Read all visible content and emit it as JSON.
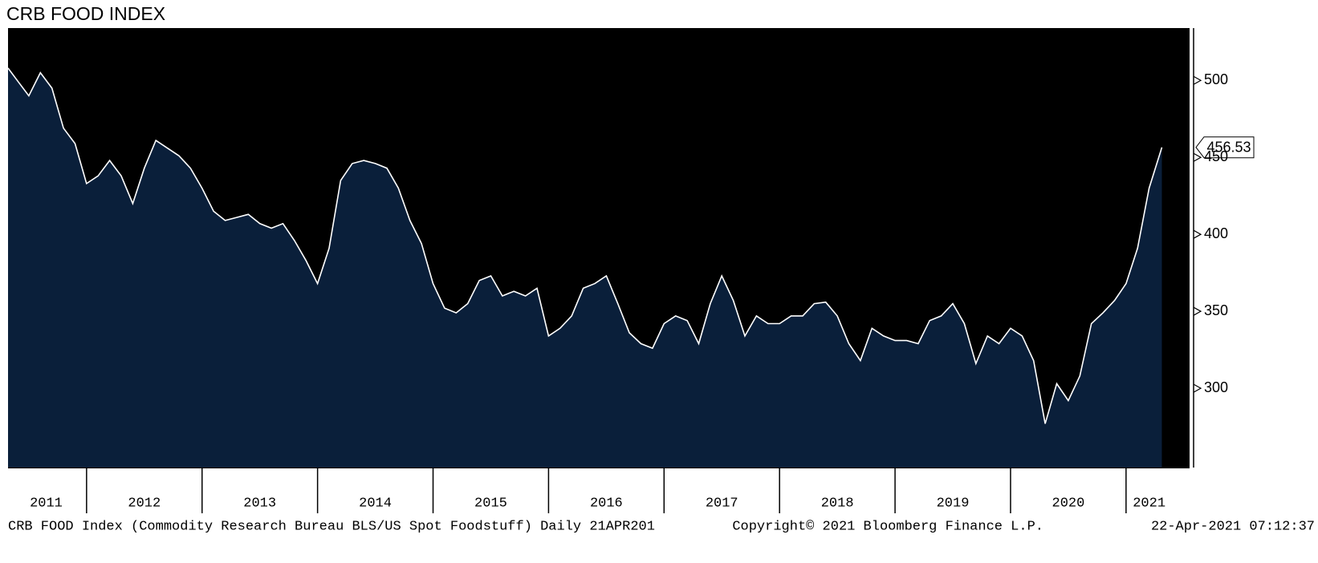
{
  "chart_data": {
    "type": "area",
    "title": "CRB FOOD INDEX",
    "x": [
      2011.32,
      2011.4,
      2011.5,
      2011.6,
      2011.7,
      2011.8,
      2011.9,
      2012.0,
      2012.1,
      2012.2,
      2012.3,
      2012.4,
      2012.5,
      2012.6,
      2012.7,
      2012.8,
      2012.9,
      2013.0,
      2013.1,
      2013.2,
      2013.3,
      2013.4,
      2013.5,
      2013.6,
      2013.7,
      2013.8,
      2013.9,
      2014.0,
      2014.1,
      2014.2,
      2014.3,
      2014.4,
      2014.5,
      2014.6,
      2014.7,
      2014.8,
      2014.9,
      2015.0,
      2015.1,
      2015.2,
      2015.3,
      2015.4,
      2015.5,
      2015.6,
      2015.7,
      2015.8,
      2015.9,
      2016.0,
      2016.1,
      2016.2,
      2016.3,
      2016.4,
      2016.5,
      2016.6,
      2016.7,
      2016.8,
      2016.9,
      2017.0,
      2017.1,
      2017.2,
      2017.3,
      2017.4,
      2017.5,
      2017.6,
      2017.7,
      2017.8,
      2017.9,
      2018.0,
      2018.1,
      2018.2,
      2018.3,
      2018.4,
      2018.5,
      2018.6,
      2018.7,
      2018.8,
      2018.9,
      2019.0,
      2019.1,
      2019.2,
      2019.3,
      2019.4,
      2019.5,
      2019.6,
      2019.7,
      2019.8,
      2019.9,
      2020.0,
      2020.1,
      2020.2,
      2020.3,
      2020.4,
      2020.5,
      2020.6,
      2020.7,
      2020.8,
      2020.9,
      2021.0,
      2021.1,
      2021.2,
      2021.31
    ],
    "series": [
      {
        "name": "CRB FOOD Index",
        "color": "#ffffff",
        "fill": "#0a1f3a",
        "values": [
          508,
          500,
          490,
          505,
          495,
          469,
          459,
          433,
          438,
          448,
          438,
          420,
          443,
          461,
          456,
          451,
          443,
          430,
          415,
          409,
          411,
          413,
          407,
          404,
          407,
          396,
          383,
          368,
          391,
          435,
          446,
          448,
          446,
          443,
          430,
          409,
          394,
          368,
          352,
          349,
          355,
          370,
          373,
          360,
          363,
          360,
          365,
          334,
          339,
          347,
          365,
          368,
          373,
          355,
          336,
          329,
          326,
          342,
          347,
          344,
          329,
          355,
          373,
          357,
          334,
          347,
          342,
          342,
          347,
          347,
          355,
          356,
          347,
          329,
          318,
          339,
          334,
          331,
          331,
          329,
          344,
          347,
          355,
          342,
          316,
          334,
          329,
          339,
          334,
          318,
          277,
          303,
          292,
          308,
          342,
          349,
          357,
          368,
          391,
          430,
          456.53
        ]
      }
    ],
    "xlim": [
      2011.32,
      2021.55
    ],
    "ylim": [
      248.5,
      534
    ],
    "yticks": [
      300,
      350,
      400,
      450,
      500
    ],
    "xticks": [
      {
        "value": 2011.65,
        "label": "2011"
      },
      {
        "value": 2012.5,
        "label": "2012"
      },
      {
        "value": 2013.5,
        "label": "2013"
      },
      {
        "value": 2014.5,
        "label": "2014"
      },
      {
        "value": 2015.5,
        "label": "2015"
      },
      {
        "value": 2016.5,
        "label": "2016"
      },
      {
        "value": 2017.5,
        "label": "2017"
      },
      {
        "value": 2018.5,
        "label": "2018"
      },
      {
        "value": 2019.5,
        "label": "2019"
      },
      {
        "value": 2020.5,
        "label": "2020"
      },
      {
        "value": 2021.2,
        "label": "2021"
      }
    ],
    "source": "CRB FOOD Index (Commodity Research Bureau BLS/US Spot Foodstuff)  Daily 21APR201",
    "copyright": "Copyright© 2021 Bloomberg Finance L.P.",
    "timestamp": "22-Apr-2021 07:12:37"
  }
}
